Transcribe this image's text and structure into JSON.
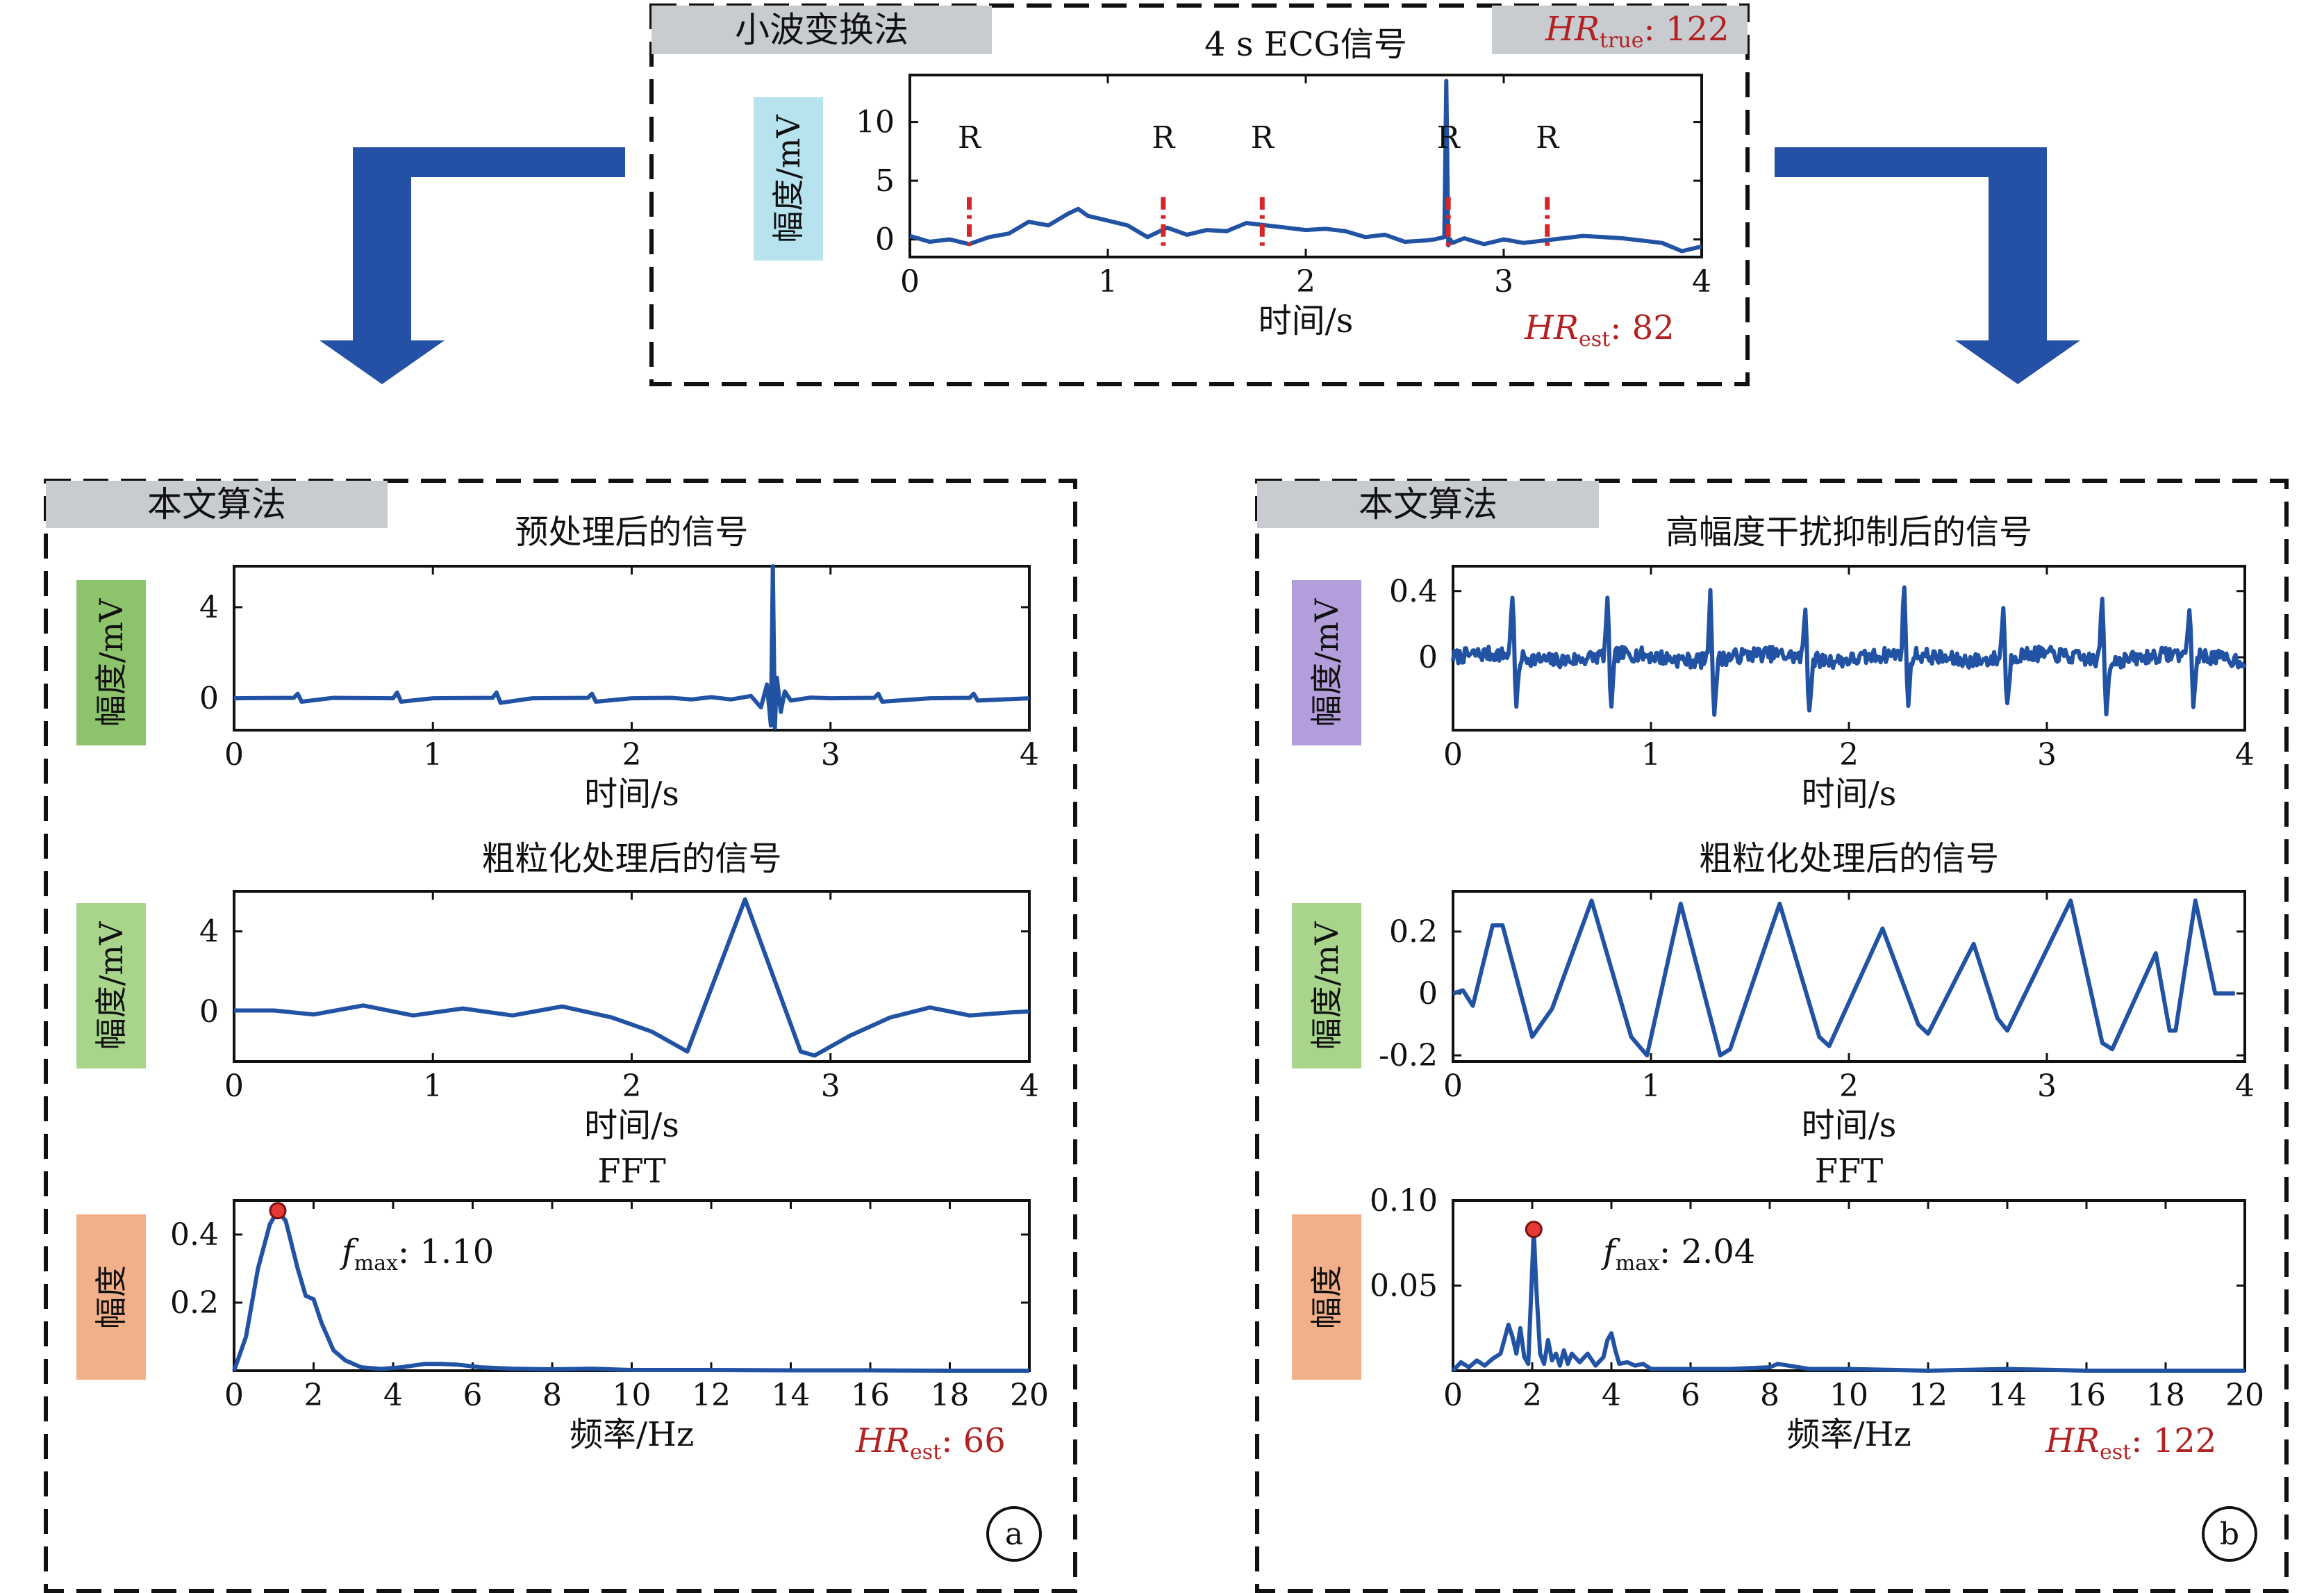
{
  "colors": {
    "signal": "#2152a3",
    "r_marker": "#d62728",
    "annotation_red": "#b22222",
    "arrow": "#2450a6",
    "header_gray": "#c8cbd0",
    "label_blue": "#b7e3ef",
    "label_green_dark": "#8dc46b",
    "label_green_light": "#a8d58b",
    "label_purple": "#b39ddb",
    "label_orange": "#f2b08a"
  },
  "top": {
    "method_label": "小波变换法",
    "hr_true_prefix": "HR",
    "hr_true_sub": "true",
    "hr_true_value": ": 122",
    "hr_est_prefix": "HR",
    "hr_est_sub": "est",
    "hr_est_value": ": 82",
    "r_label": "R"
  },
  "panel_a": {
    "method_label": "本文算法",
    "circle_label": "a",
    "hr_est_prefix": "HR",
    "hr_est_sub": "est",
    "hr_est_value": ": 66",
    "fmax_prefix": "f",
    "fmax_sub": "max",
    "fmax_value": ": 1.10"
  },
  "panel_b": {
    "method_label": "本文算法",
    "circle_label": "b",
    "hr_est_prefix": "HR",
    "hr_est_sub": "est",
    "hr_est_value": ": 122",
    "fmax_prefix": "f",
    "fmax_sub": "max",
    "fmax_value": ": 2.04"
  },
  "chart_data": [
    {
      "id": "top-ecg",
      "type": "line",
      "title": "4 s ECG信号",
      "xlabel": "时间/s",
      "ylabel": "幅度/mV",
      "ylabel_color": "#b7e3ef",
      "xlim": [
        0,
        4
      ],
      "ylim": [
        -1.5,
        14
      ],
      "xticks": [
        0,
        1,
        2,
        3,
        4
      ],
      "yticks": [
        0,
        5,
        10
      ],
      "r_peaks": [
        0.3,
        1.28,
        1.78,
        2.72,
        3.22
      ],
      "x": [
        0,
        0.1,
        0.2,
        0.3,
        0.4,
        0.5,
        0.6,
        0.7,
        0.8,
        0.85,
        0.9,
        1.0,
        1.1,
        1.2,
        1.3,
        1.4,
        1.5,
        1.6,
        1.7,
        1.8,
        1.9,
        2.0,
        2.1,
        2.2,
        2.3,
        2.4,
        2.5,
        2.6,
        2.65,
        2.7,
        2.71,
        2.72,
        2.73,
        2.74,
        2.8,
        2.9,
        3.0,
        3.1,
        3.2,
        3.3,
        3.4,
        3.5,
        3.6,
        3.7,
        3.8,
        3.9,
        4.0
      ],
      "y": [
        0.3,
        -0.2,
        0,
        -0.4,
        0.2,
        0.5,
        1.5,
        1.2,
        2.2,
        2.6,
        2,
        1.6,
        1.2,
        0.2,
        1.0,
        0.4,
        0.8,
        0.7,
        1.4,
        1.2,
        1.0,
        0.8,
        0.9,
        0.7,
        0.2,
        0.4,
        -0.2,
        -0.1,
        0,
        0.2,
        13.5,
        -0.5,
        0,
        -0.3,
        0.1,
        -0.4,
        0,
        -0.3,
        -0.1,
        0.1,
        0.3,
        0.2,
        0.1,
        -0.1,
        -0.3,
        -1.0,
        -0.6
      ]
    },
    {
      "id": "a-pre",
      "type": "line",
      "title": "预处理后的信号",
      "xlabel": "时间/s",
      "ylabel": "幅度/mV",
      "ylabel_color": "#8dc46b",
      "xlim": [
        0,
        4
      ],
      "ylim": [
        -1.4,
        5.8
      ],
      "xticks": [
        0,
        1,
        2,
        3,
        4
      ],
      "yticks": [
        0,
        4
      ],
      "x": [
        0,
        0.3,
        0.32,
        0.34,
        0.5,
        0.8,
        0.82,
        0.84,
        1.0,
        1.3,
        1.32,
        1.34,
        1.5,
        1.78,
        1.8,
        1.82,
        2.0,
        2.2,
        2.3,
        2.4,
        2.5,
        2.6,
        2.65,
        2.68,
        2.7,
        2.71,
        2.72,
        2.73,
        2.75,
        2.77,
        2.8,
        2.9,
        3.0,
        3.22,
        3.24,
        3.26,
        3.5,
        3.7,
        3.72,
        3.74,
        4.0
      ],
      "y": [
        0,
        0.02,
        0.2,
        -0.15,
        0.02,
        0,
        0.25,
        -0.15,
        0,
        0.02,
        0.25,
        -0.2,
        0,
        0.02,
        0.2,
        -0.15,
        0,
        0.02,
        -0.05,
        0.05,
        -0.05,
        0.1,
        -0.4,
        0.6,
        -1.2,
        5.8,
        -1.3,
        0.9,
        -0.6,
        0.3,
        -0.1,
        0.03,
        0,
        0.02,
        0.2,
        -0.15,
        0,
        0.02,
        0.2,
        -0.1,
        0
      ]
    },
    {
      "id": "a-coarse",
      "type": "line",
      "title": "粗粒化处理后的信号",
      "xlabel": "时间/s",
      "ylabel": "幅度/mV",
      "ylabel_color": "#a8d58b",
      "xlim": [
        0,
        4
      ],
      "ylim": [
        -2.5,
        6
      ],
      "xticks": [
        0,
        1,
        2,
        3,
        4
      ],
      "yticks": [
        0,
        4
      ],
      "x": [
        0,
        0.2,
        0.4,
        0.65,
        0.9,
        1.15,
        1.4,
        1.65,
        1.9,
        2.1,
        2.28,
        2.57,
        2.85,
        2.92,
        3.1,
        3.3,
        3.5,
        3.7,
        3.9,
        4.0
      ],
      "y": [
        0.05,
        0.05,
        -0.15,
        0.3,
        -0.2,
        0.15,
        -0.2,
        0.25,
        -0.3,
        -1.0,
        -2.0,
        5.6,
        -2.0,
        -2.2,
        -1.2,
        -0.3,
        0.2,
        -0.2,
        -0.05,
        0.0
      ]
    },
    {
      "id": "a-fft",
      "type": "line",
      "title": "FFT",
      "xlabel": "频率/Hz",
      "ylabel": "幅度",
      "ylabel_color": "#f2b08a",
      "xlim": [
        0,
        20
      ],
      "ylim": [
        0,
        0.5
      ],
      "xticks": [
        0,
        2,
        4,
        6,
        8,
        10,
        12,
        14,
        16,
        18,
        20
      ],
      "yticks": [
        0.2,
        0.4
      ],
      "peak": [
        1.1,
        0.47
      ],
      "x": [
        0,
        0.3,
        0.6,
        0.9,
        1.1,
        1.3,
        1.6,
        1.8,
        2.0,
        2.2,
        2.5,
        2.8,
        3.2,
        3.7,
        4.2,
        4.8,
        5.2,
        5.6,
        6.2,
        7.0,
        8.0,
        9.0,
        10.0,
        12,
        14,
        16,
        18,
        20
      ],
      "y": [
        0.0,
        0.1,
        0.3,
        0.43,
        0.47,
        0.44,
        0.3,
        0.22,
        0.21,
        0.14,
        0.06,
        0.03,
        0.01,
        0.005,
        0.01,
        0.02,
        0.02,
        0.018,
        0.01,
        0.006,
        0.004,
        0.006,
        0.002,
        0.002,
        0.001,
        0.001,
        0.0,
        0.0
      ]
    },
    {
      "id": "b-suppr",
      "type": "line",
      "title": "高幅度干扰抑制后的信号",
      "xlabel": "时间/s",
      "ylabel": "幅度/mV",
      "ylabel_color": "#b39ddb",
      "xlim": [
        0,
        4
      ],
      "ylim": [
        -0.44,
        0.55
      ],
      "xticks": [
        0,
        1,
        2,
        3,
        4
      ],
      "yticks": [
        0,
        0.4
      ],
      "spikes": [
        0.3,
        0.78,
        1.3,
        1.78,
        2.28,
        2.78,
        3.28,
        3.72
      ],
      "baseline": [
        0.02,
        -0.02,
        0.03,
        0.0,
        0.04,
        -0.03,
        0.02,
        0.0
      ]
    },
    {
      "id": "b-coarse",
      "type": "line",
      "title": "粗粒化处理后的信号",
      "xlabel": "时间/s",
      "ylabel": "幅度/mV",
      "ylabel_color": "#a8d58b",
      "xlim": [
        0,
        4
      ],
      "ylim": [
        -0.22,
        0.33
      ],
      "xticks": [
        0,
        1,
        2,
        3,
        4
      ],
      "yticks": [
        -0.2,
        0,
        0.2
      ],
      "x": [
        0,
        0.05,
        0.1,
        0.2,
        0.25,
        0.4,
        0.5,
        0.7,
        0.9,
        0.98,
        1.15,
        1.35,
        1.4,
        1.65,
        1.85,
        1.9,
        2.17,
        2.35,
        2.4,
        2.63,
        2.75,
        2.8,
        3.12,
        3.28,
        3.33,
        3.55,
        3.62,
        3.65,
        3.75,
        3.85,
        3.9,
        3.95
      ],
      "y": [
        0.0,
        0.01,
        -0.04,
        0.22,
        0.22,
        -0.14,
        -0.05,
        0.3,
        -0.14,
        -0.2,
        0.29,
        -0.2,
        -0.18,
        0.29,
        -0.14,
        -0.17,
        0.21,
        -0.1,
        -0.13,
        0.16,
        -0.08,
        -0.12,
        0.3,
        -0.16,
        -0.18,
        0.13,
        -0.12,
        -0.12,
        0.3,
        0.0,
        0.0,
        0.0
      ]
    },
    {
      "id": "b-fft",
      "type": "line",
      "title": "FFT",
      "xlabel": "频率/Hz",
      "ylabel": "幅度",
      "ylabel_color": "#f2b08a",
      "xlim": [
        0,
        20
      ],
      "ylim": [
        0,
        0.1
      ],
      "xticks": [
        0,
        2,
        4,
        6,
        8,
        10,
        12,
        14,
        16,
        18,
        20
      ],
      "yticks": [
        0.05,
        0.1
      ],
      "ytick_labels": [
        "0.05",
        "0.10"
      ],
      "peak": [
        2.04,
        0.083
      ],
      "x": [
        0,
        0.2,
        0.4,
        0.6,
        0.8,
        1.0,
        1.2,
        1.4,
        1.5,
        1.6,
        1.7,
        1.8,
        1.9,
        2.0,
        2.04,
        2.1,
        2.2,
        2.3,
        2.4,
        2.5,
        2.6,
        2.7,
        2.8,
        2.9,
        3.0,
        3.2,
        3.4,
        3.6,
        3.8,
        3.9,
        4.0,
        4.1,
        4.2,
        4.4,
        4.6,
        4.8,
        5.0,
        6.0,
        7.0,
        8.0,
        8.2,
        9.0,
        10,
        12,
        14,
        16,
        18,
        20
      ],
      "y": [
        0.0,
        0.005,
        0.002,
        0.006,
        0.003,
        0.007,
        0.01,
        0.027,
        0.02,
        0.01,
        0.025,
        0.008,
        0.004,
        0.06,
        0.083,
        0.05,
        0.01,
        0.004,
        0.018,
        0.006,
        0.01,
        0.003,
        0.012,
        0.004,
        0.01,
        0.005,
        0.01,
        0.003,
        0.008,
        0.018,
        0.022,
        0.012,
        0.004,
        0.005,
        0.003,
        0.004,
        0.001,
        0.001,
        0.001,
        0.002,
        0.004,
        0.001,
        0.001,
        0.0,
        0.001,
        0.0,
        0.0,
        0.0
      ]
    }
  ]
}
